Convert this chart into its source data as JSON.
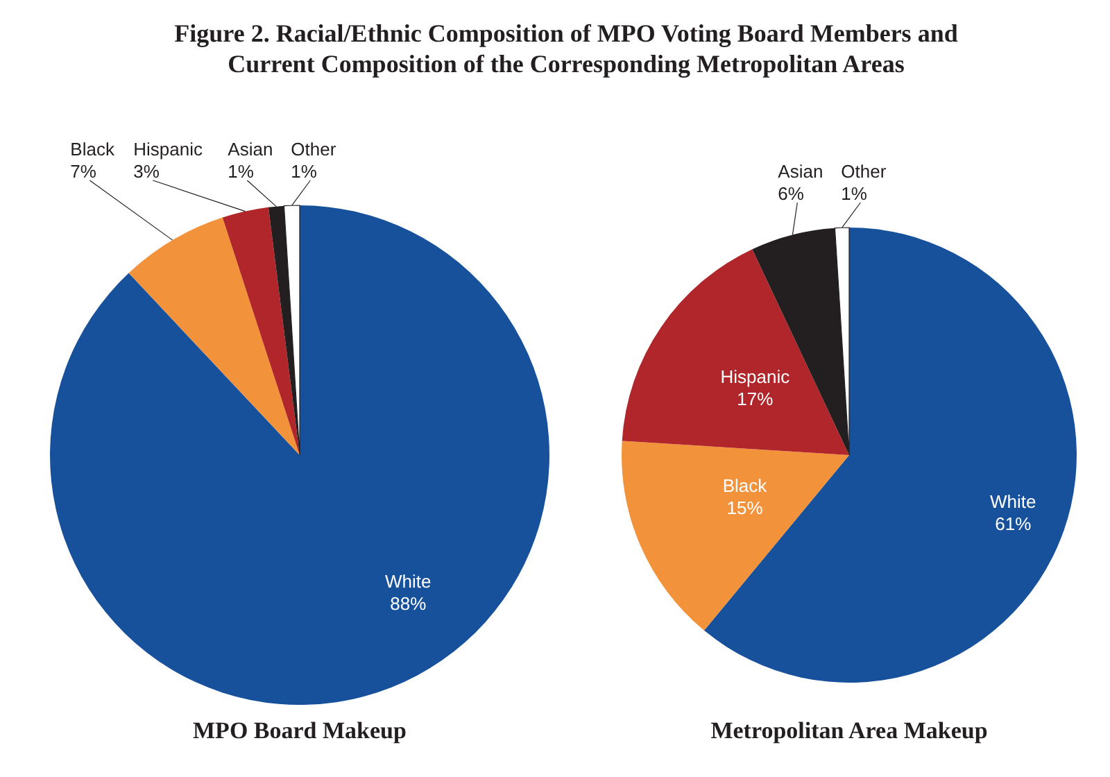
{
  "chart_data": [
    {
      "type": "pie",
      "title": "Figure 2. Racial/Ethnic Composition of MPO Voting Board Members and Current Composition of the Corresponding Metropolitan Areas",
      "xlabel": "MPO Board Makeup",
      "categories": [
        "White",
        "Black",
        "Hispanic",
        "Asian",
        "Other"
      ],
      "values": [
        88,
        7,
        3,
        1,
        1
      ],
      "value_labels": [
        "88%",
        "7%",
        "3%",
        "1%",
        "1%"
      ],
      "colors": [
        "#17519c",
        "#f2933b",
        "#b1262a",
        "#231f20",
        "#ffffff"
      ]
    },
    {
      "type": "pie",
      "xlabel": "Metropolitan Area Makeup",
      "categories": [
        "White",
        "Black",
        "Hispanic",
        "Asian",
        "Other"
      ],
      "values": [
        61,
        15,
        17,
        6,
        1
      ],
      "value_labels": [
        "61%",
        "15%",
        "17%",
        "6%",
        "1%"
      ],
      "colors": [
        "#17519c",
        "#f2933b",
        "#b1262a",
        "#231f20",
        "#ffffff"
      ]
    }
  ]
}
